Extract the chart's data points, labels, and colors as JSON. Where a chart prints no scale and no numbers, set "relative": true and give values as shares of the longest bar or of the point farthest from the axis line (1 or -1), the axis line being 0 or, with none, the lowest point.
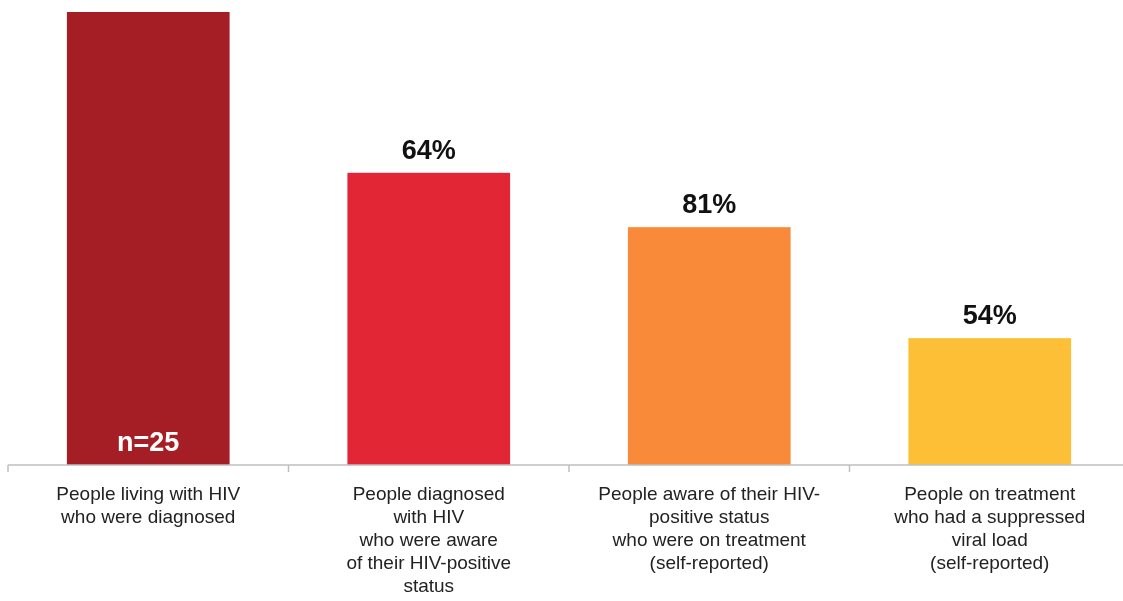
{
  "chart_data": {
    "type": "bar",
    "relative": true,
    "categories": [
      "People living with HIV\nwho were diagnosed",
      "People diagnosed\nwith HIV\nwho were aware\nof their HIV-positive\nstatus",
      "People aware of their HIV-\npositive status\nwho were on treatment\n(self-reported)",
      "People on treatment\nwho had a suppressed\nviral load\n(self-reported)"
    ],
    "values": [
      1,
      0.645,
      0.525,
      0.28
    ],
    "colors": [
      "#a51e25",
      "#e32636",
      "#f98a3a",
      "#fdbf35"
    ],
    "annotations": [
      "n=25",
      "64%",
      "81%",
      "54%"
    ]
  }
}
